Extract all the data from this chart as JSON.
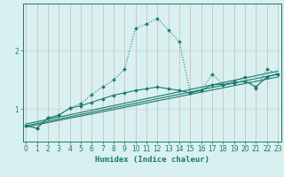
{
  "xlabel": "Humidex (Indice chaleur)",
  "background_color": "#d8f0f0",
  "grid_color_v": "#d4b0b0",
  "grid_color_h": "#c8d8d8",
  "line_color": "#1a7a6e",
  "x_values": [
    0,
    1,
    2,
    3,
    4,
    5,
    6,
    7,
    8,
    9,
    10,
    11,
    12,
    13,
    14,
    15,
    16,
    17,
    18,
    19,
    20,
    21,
    22,
    23
  ],
  "series1_y": [
    0.72,
    0.68,
    0.85,
    0.9,
    1.02,
    1.1,
    1.25,
    1.38,
    1.5,
    1.68,
    2.38,
    2.45,
    2.55,
    2.35,
    2.15,
    1.28,
    1.32,
    1.6,
    1.42,
    1.48,
    1.55,
    1.35,
    1.68,
    1.6
  ],
  "series2_y": [
    0.72,
    0.68,
    0.85,
    0.9,
    1.02,
    1.06,
    1.12,
    1.18,
    1.24,
    1.28,
    1.32,
    1.35,
    1.38,
    1.35,
    1.32,
    1.28,
    1.32,
    1.42,
    1.42,
    1.45,
    1.48,
    1.38,
    1.55,
    1.6
  ],
  "refline1_x": [
    0,
    23
  ],
  "refline1_y": [
    0.7,
    1.55
  ],
  "refline2_x": [
    0,
    23
  ],
  "refline2_y": [
    0.72,
    1.6
  ],
  "refline3_x": [
    0,
    23
  ],
  "refline3_y": [
    0.75,
    1.65
  ],
  "yticks": [
    1,
    2
  ],
  "xtick_labels": [
    "0",
    "1",
    "2",
    "3",
    "4",
    "5",
    "6",
    "7",
    "8",
    "9",
    "10",
    "11",
    "12",
    "13",
    "14",
    "15",
    "16",
    "17",
    "18",
    "19",
    "20",
    "21",
    "22",
    "23"
  ],
  "ylim": [
    0.45,
    2.8
  ],
  "xlim": [
    -0.3,
    23.3
  ],
  "tick_fontsize": 5.5,
  "label_fontsize": 6.5
}
